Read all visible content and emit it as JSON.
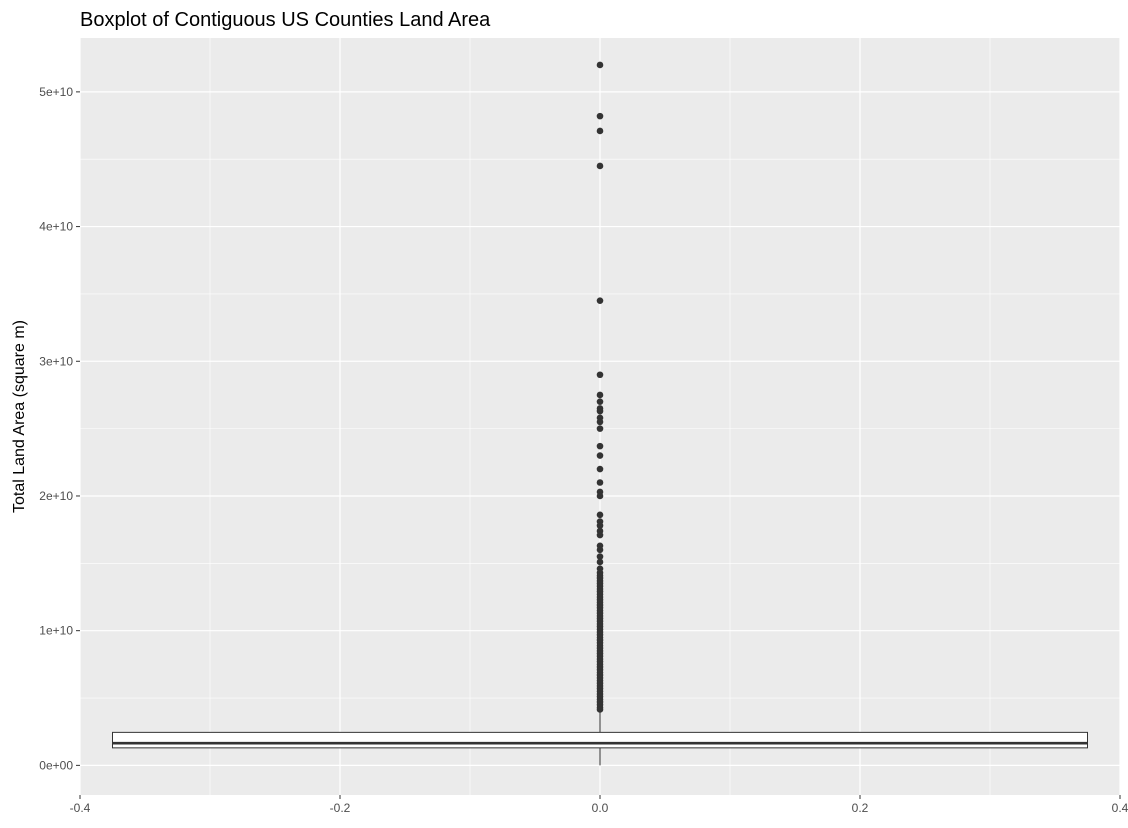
{
  "chart_data": {
    "type": "boxplot",
    "title": "Boxplot of Contiguous US Counties Land Area",
    "xlabel": "",
    "ylabel": "Total Land Area (square m)",
    "xlim": [
      -0.4,
      0.4
    ],
    "ylim": [
      -2200000000,
      54000000000
    ],
    "x_major_ticks": [
      -0.4,
      -0.2,
      0.0,
      0.2,
      0.4
    ],
    "x_tick_labels": [
      "-0.4",
      "-0.2",
      "0.0",
      "0.2",
      "0.4"
    ],
    "x_minor_ticks": [
      -0.3,
      -0.1,
      0.1,
      0.3
    ],
    "y_major_ticks": [
      0,
      10000000000,
      20000000000,
      30000000000,
      40000000000,
      50000000000
    ],
    "y_tick_labels": [
      "0e+00",
      "1e+10",
      "2e+10",
      "3e+10",
      "4e+10",
      "5e+10"
    ],
    "y_minor_ticks": [
      5000000000,
      15000000000,
      25000000000,
      35000000000,
      45000000000
    ],
    "grid": true,
    "colors": {
      "panel_background": "#EBEBEB",
      "grid": "#FFFFFF",
      "box_fill": "#FFFFFF",
      "box_line": "#333333",
      "outlier": "#333333"
    },
    "box": {
      "x_center": 0.0,
      "x_left": -0.375,
      "x_right": 0.375,
      "lower_whisker": 0,
      "q1": 1300000000,
      "median": 1650000000,
      "q3": 2450000000,
      "upper_whisker": 2450000000,
      "whisker_top": 4100000000
    },
    "outliers": [
      52000000000,
      48200000000,
      47100000000,
      44500000000,
      34500000000,
      29000000000,
      27500000000,
      27000000000,
      26500000000,
      26300000000,
      25800000000,
      25500000000,
      25000000000,
      23700000000,
      23000000000,
      22000000000,
      21000000000,
      20300000000,
      20000000000,
      18600000000,
      18100000000,
      17800000000,
      17400000000,
      17100000000,
      16300000000,
      16000000000,
      15500000000,
      15100000000,
      14600000000,
      14300000000,
      14100000000,
      13900000000,
      13700000000,
      13500000000,
      13300000000,
      13100000000,
      12900000000,
      12700000000,
      12500000000,
      12300000000,
      12100000000,
      11900000000,
      11700000000,
      11500000000,
      11300000000,
      11100000000,
      10900000000,
      10700000000,
      10500000000,
      10300000000,
      10100000000,
      9900000000,
      9700000000,
      9500000000,
      9300000000,
      9100000000,
      8900000000,
      8700000000,
      8500000000,
      8300000000,
      8100000000,
      7900000000,
      7700000000,
      7500000000,
      7300000000,
      7100000000,
      6900000000,
      6700000000,
      6500000000,
      6300000000,
      6100000000,
      5900000000,
      5700000000,
      5500000000,
      5300000000,
      5100000000,
      4900000000,
      4700000000,
      4500000000,
      4300000000,
      4150000000
    ]
  }
}
